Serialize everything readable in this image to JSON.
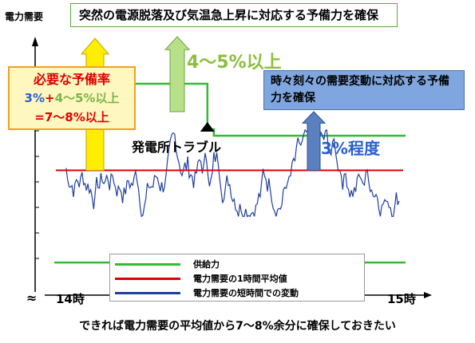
{
  "chart_data": {
    "type": "line",
    "ylabel": "電力需要",
    "x_tick_labels": [
      "14時",
      "15時"
    ],
    "top_callout": "突然の電源脱落及び気温急上昇に対応する予備力を確保",
    "reserve_box": {
      "title": "必要な予備率",
      "line2_a": "3%",
      "line2_b": "+",
      "line2_c": "4～5%以上",
      "line3": "=7～8%以上"
    },
    "big_green_label": "4～5%以上",
    "blue_callout": "時々刻々の需要変動に対応する予備力を確保",
    "big_blue_label": "3%程度",
    "trouble_label": "発電所トラブル",
    "caption": "できれば電力需要の平均値から7～8%余分に確保しておきたい",
    "break_symbol": "≈",
    "legend": [
      {
        "label": "供給力",
        "color": "#33bb33"
      },
      {
        "label": "電力需要の1時間平均値",
        "color": "#e00000"
      },
      {
        "label": "電力需要の短時間での変動",
        "color": "#1f3fa0"
      }
    ],
    "colors": {
      "supply": "#33bb33",
      "average": "#e00000",
      "fluctuation": "#1f3fa0",
      "arrow_yellow": "#ffee00",
      "arrow_green": "#b8e088",
      "arrow_blue": "#5a80c0"
    },
    "series": {
      "supply_before": 107.5,
      "supply_after": 103,
      "supply_lower": 92,
      "average": 100,
      "trouble_x": 0.46,
      "fluctuation_range": [
        96,
        103.5
      ]
    },
    "ylim": [
      90,
      112
    ]
  }
}
